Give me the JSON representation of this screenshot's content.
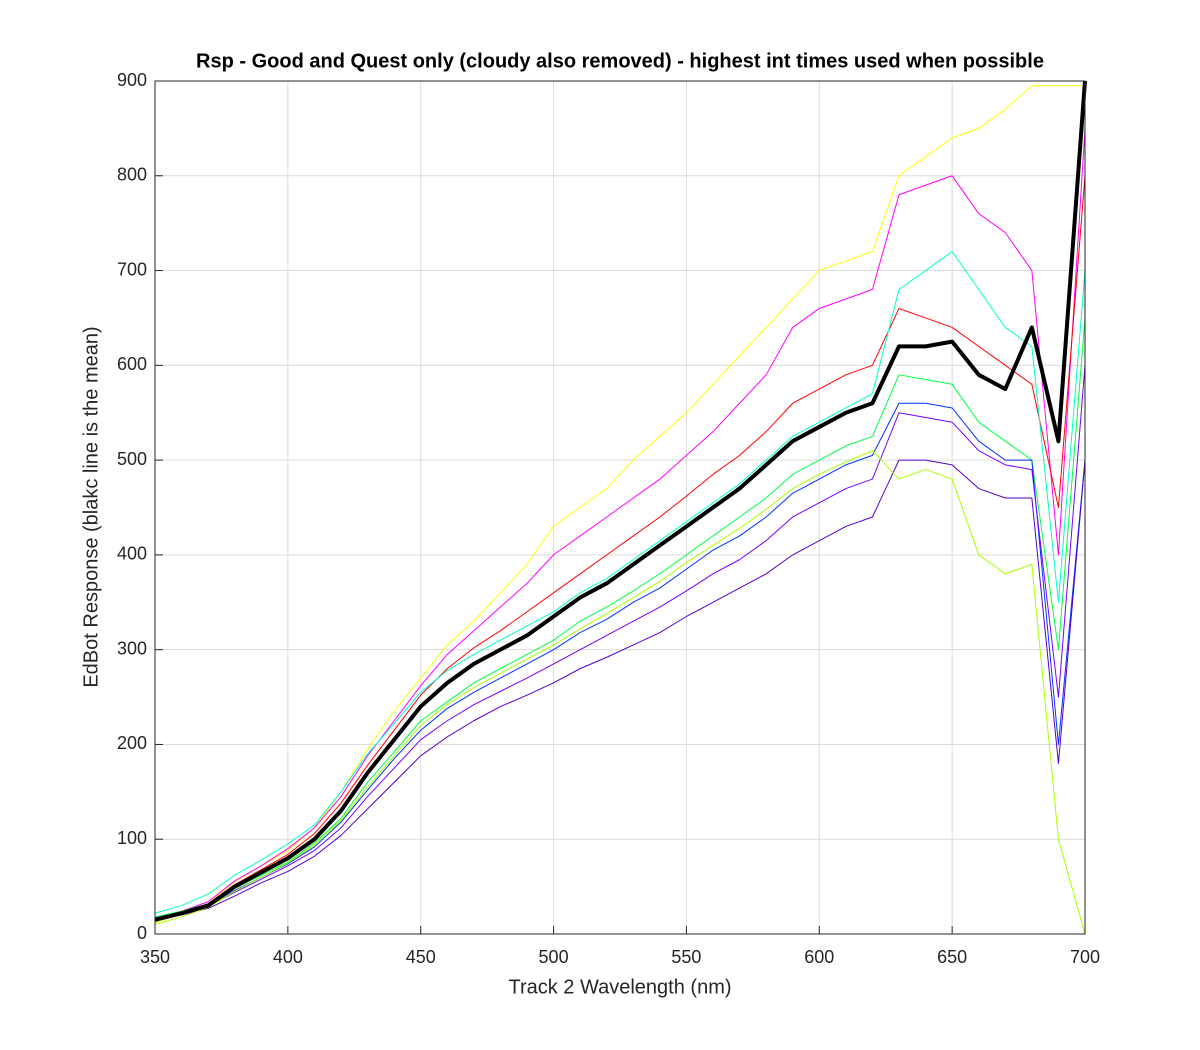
{
  "chart_data": {
    "type": "line",
    "title": "Rsp - Good and Quest only (cloudy also removed) - highest int times used when possible",
    "x_label": "Track 2 Wavelength (nm)",
    "y_label": "EdBot Response (blakc line is the mean)",
    "x": [
      350,
      360,
      370,
      380,
      390,
      400,
      410,
      420,
      430,
      440,
      450,
      460,
      470,
      480,
      490,
      500,
      510,
      520,
      530,
      540,
      550,
      560,
      570,
      580,
      590,
      600,
      610,
      620,
      630,
      640,
      650,
      660,
      670,
      680,
      690,
      700
    ],
    "series": [
      {
        "color": "#ffff00",
        "width": 1,
        "values": [
          12,
          22,
          32,
          55,
          72,
          88,
          112,
          150,
          195,
          235,
          270,
          305,
          330,
          360,
          390,
          430,
          450,
          470,
          500,
          525,
          550,
          580,
          610,
          640,
          670,
          700,
          710,
          720,
          800,
          820,
          840,
          850,
          870,
          895,
          895,
          895
        ]
      },
      {
        "color": "#ff00ff",
        "width": 1,
        "values": [
          14,
          24,
          34,
          56,
          72,
          90,
          112,
          145,
          188,
          225,
          262,
          295,
          320,
          345,
          370,
          400,
          420,
          440,
          460,
          480,
          505,
          530,
          560,
          590,
          640,
          660,
          670,
          680,
          780,
          790,
          800,
          760,
          740,
          700,
          400,
          850
        ]
      },
      {
        "color": "#ff0000",
        "width": 1,
        "values": [
          15,
          23,
          32,
          52,
          68,
          84,
          106,
          138,
          178,
          215,
          252,
          280,
          302,
          320,
          340,
          360,
          380,
          400,
          420,
          440,
          462,
          485,
          505,
          530,
          560,
          575,
          590,
          600,
          660,
          650,
          640,
          620,
          600,
          580,
          450,
          800
        ]
      },
      {
        "color": "#00ffcc",
        "width": 1,
        "values": [
          22,
          30,
          42,
          62,
          78,
          95,
          115,
          150,
          190,
          222,
          255,
          278,
          295,
          310,
          325,
          340,
          360,
          375,
          395,
          415,
          435,
          455,
          475,
          500,
          525,
          540,
          555,
          570,
          680,
          700,
          720,
          680,
          640,
          620,
          350,
          700
        ]
      },
      {
        "color": "#00ff44",
        "width": 1,
        "values": [
          18,
          24,
          32,
          48,
          62,
          76,
          96,
          122,
          160,
          192,
          225,
          245,
          265,
          280,
          295,
          310,
          330,
          345,
          362,
          380,
          400,
          420,
          440,
          460,
          485,
          500,
          515,
          525,
          590,
          585,
          580,
          540,
          520,
          500,
          300,
          650
        ]
      },
      {
        "color": "#0033ff",
        "width": 1,
        "values": [
          17,
          23,
          30,
          46,
          60,
          74,
          92,
          118,
          152,
          185,
          215,
          238,
          255,
          270,
          285,
          300,
          318,
          332,
          350,
          365,
          385,
          405,
          420,
          440,
          465,
          480,
          495,
          505,
          560,
          560,
          555,
          520,
          500,
          500,
          200,
          500
        ]
      },
      {
        "color": "#7700ff",
        "width": 1,
        "values": [
          16,
          22,
          29,
          44,
          58,
          72,
          88,
          112,
          145,
          175,
          205,
          225,
          242,
          256,
          270,
          285,
          300,
          315,
          330,
          345,
          362,
          380,
          395,
          415,
          440,
          455,
          470,
          480,
          550,
          545,
          540,
          510,
          495,
          490,
          250,
          600
        ]
      },
      {
        "color": "#5500cc",
        "width": 1,
        "values": [
          15,
          20,
          27,
          40,
          54,
          66,
          82,
          104,
          132,
          160,
          188,
          208,
          225,
          240,
          252,
          265,
          280,
          292,
          305,
          318,
          335,
          350,
          365,
          380,
          400,
          415,
          430,
          440,
          500,
          500,
          495,
          470,
          460,
          460,
          180,
          500
        ]
      },
      {
        "color": "#aaff00",
        "width": 1,
        "values": [
          10,
          18,
          28,
          45,
          60,
          75,
          94,
          120,
          155,
          188,
          220,
          242,
          260,
          275,
          290,
          305,
          322,
          338,
          355,
          372,
          392,
          410,
          428,
          448,
          470,
          485,
          498,
          510,
          480,
          490,
          480,
          400,
          380,
          390,
          100,
          0
        ]
      },
      {
        "color": "#000000",
        "width": 4,
        "values": [
          15,
          22,
          30,
          50,
          65,
          80,
          100,
          130,
          170,
          205,
          240,
          265,
          285,
          300,
          315,
          335,
          355,
          370,
          390,
          410,
          430,
          450,
          470,
          495,
          520,
          535,
          550,
          560,
          620,
          620,
          625,
          590,
          575,
          640,
          520,
          900
        ]
      }
    ],
    "xlim": [
      350,
      700
    ],
    "xticks": [
      350,
      400,
      450,
      500,
      550,
      600,
      650,
      700
    ],
    "ylim": [
      0,
      900
    ],
    "yticks": [
      0,
      100,
      200,
      300,
      400,
      500,
      600,
      700,
      800,
      900
    ],
    "grid": true
  }
}
